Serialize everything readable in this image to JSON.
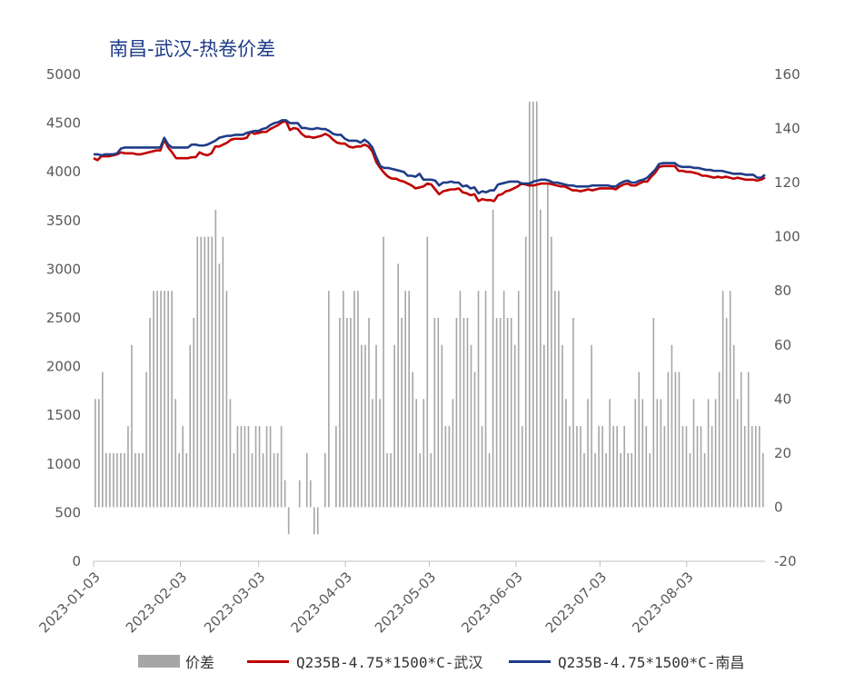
{
  "title": "南昌-武汉-热卷价差",
  "colors": {
    "spread": "#a6a6a6",
    "wuhan": "#c00000",
    "nanchang": "#1f3c88",
    "axis": "#bfbfbf",
    "text": "#595959"
  },
  "chart_data": {
    "type": "bar+line",
    "title": "南昌-武汉-热卷价差",
    "x_ticks": [
      "2023-01-03",
      "2023-02-03",
      "2023-03-03",
      "2023-04-03",
      "2023-05-03",
      "2023-06-03",
      "2023-07-03",
      "2023-08-03"
    ],
    "y_left": {
      "min": 0,
      "max": 5000,
      "step": 500,
      "ticks": [
        "0",
        "500",
        "1000",
        "1500",
        "2000",
        "2500",
        "3000",
        "3500",
        "4000",
        "4500",
        "5000"
      ]
    },
    "y_right": {
      "min": -20,
      "max": 160,
      "step": 20,
      "ticks": [
        "-20",
        "0",
        "20",
        "40",
        "60",
        "80",
        "100",
        "120",
        "140",
        "160"
      ]
    },
    "date_start": "2023-01-03",
    "date_end": "2023-08-31",
    "series": [
      {
        "name": "价差",
        "axis": "right",
        "kind": "bar",
        "values": [
          40,
          40,
          50,
          20,
          20,
          20,
          20,
          20,
          20,
          30,
          60,
          20,
          20,
          20,
          50,
          70,
          80,
          80,
          80,
          80,
          80,
          80,
          40,
          20,
          30,
          20,
          60,
          70,
          100,
          100,
          100,
          100,
          100,
          110,
          90,
          100,
          80,
          40,
          20,
          30,
          30,
          30,
          30,
          20,
          30,
          30,
          20,
          30,
          30,
          20,
          20,
          30,
          10,
          -10,
          0,
          0,
          10,
          0,
          20,
          10,
          -10,
          -10,
          0,
          20,
          80,
          0,
          30,
          70,
          80,
          70,
          70,
          80,
          80,
          60,
          60,
          70,
          40,
          60,
          40,
          100,
          20,
          20,
          60,
          90,
          70,
          80,
          80,
          50,
          40,
          20,
          40,
          100,
          20,
          70,
          70,
          60,
          30,
          30,
          40,
          70,
          80,
          70,
          70,
          60,
          50,
          80,
          30,
          80,
          20,
          110,
          70,
          70,
          80,
          70,
          70,
          60,
          80,
          30,
          100,
          150,
          150,
          150,
          110,
          60,
          120,
          100,
          80,
          80,
          60,
          40,
          30,
          70,
          30,
          30,
          20,
          40,
          60,
          20,
          30,
          30,
          20,
          40,
          30,
          30,
          20,
          30,
          20,
          20,
          40,
          50,
          40,
          30,
          20,
          70,
          40,
          40,
          30,
          50,
          60,
          50,
          50,
          30,
          30,
          20,
          40,
          30,
          30,
          20,
          40,
          30,
          40,
          50,
          80,
          70,
          80,
          60,
          40,
          50,
          30,
          50,
          30,
          30,
          30,
          20
        ]
      },
      {
        "name": "Q235B-4.75*1500*C-武汉",
        "axis": "left",
        "kind": "line",
        "values": [
          4140,
          4120,
          4160,
          4160,
          4160,
          4170,
          4180,
          4200,
          4190,
          4190,
          4190,
          4180,
          4180,
          4190,
          4200,
          4210,
          4220,
          4220,
          4330,
          4250,
          4200,
          4140,
          4140,
          4140,
          4140,
          4150,
          4150,
          4200,
          4180,
          4170,
          4190,
          4260,
          4260,
          4280,
          4300,
          4330,
          4340,
          4340,
          4340,
          4350,
          4410,
          4390,
          4400,
          4410,
          4410,
          4440,
          4460,
          4480,
          4510,
          4520,
          4430,
          4450,
          4440,
          4390,
          4360,
          4360,
          4350,
          4360,
          4370,
          4390,
          4370,
          4330,
          4300,
          4290,
          4290,
          4260,
          4250,
          4260,
          4260,
          4280,
          4260,
          4210,
          4100,
          4040,
          3990,
          3950,
          3930,
          3930,
          3910,
          3900,
          3880,
          3860,
          3830,
          3840,
          3850,
          3880,
          3870,
          3820,
          3770,
          3800,
          3810,
          3820,
          3820,
          3830,
          3790,
          3780,
          3760,
          3770,
          3700,
          3720,
          3710,
          3710,
          3700,
          3760,
          3770,
          3800,
          3810,
          3830,
          3850,
          3880,
          3870,
          3860,
          3860,
          3870,
          3880,
          3880,
          3880,
          3870,
          3860,
          3850,
          3850,
          3830,
          3810,
          3810,
          3800,
          3810,
          3820,
          3810,
          3820,
          3830,
          3830,
          3830,
          3830,
          3820,
          3850,
          3870,
          3880,
          3860,
          3860,
          3880,
          3900,
          3900,
          3950,
          3990,
          4050,
          4060,
          4060,
          4060,
          4060,
          4010,
          4010,
          4000,
          4000,
          3990,
          3980,
          3960,
          3960,
          3950,
          3940,
          3950,
          3940,
          3950,
          3940,
          3930,
          3940,
          3930,
          3920,
          3920,
          3920,
          3910,
          3920,
          3940
        ]
      },
      {
        "name": "Q235B-4.75*1500*C-南昌",
        "axis": "left",
        "kind": "line",
        "values": [
          4180,
          4180,
          4170,
          4180,
          4180,
          4180,
          4190,
          4240,
          4250,
          4250,
          4250,
          4250,
          4250,
          4250,
          4250,
          4250,
          4250,
          4250,
          4350,
          4280,
          4250,
          4250,
          4250,
          4250,
          4250,
          4280,
          4280,
          4270,
          4270,
          4280,
          4300,
          4320,
          4350,
          4360,
          4370,
          4370,
          4380,
          4380,
          4380,
          4400,
          4410,
          4420,
          4420,
          4440,
          4450,
          4480,
          4500,
          4510,
          4530,
          4530,
          4500,
          4500,
          4500,
          4450,
          4450,
          4440,
          4440,
          4450,
          4440,
          4440,
          4420,
          4390,
          4380,
          4380,
          4340,
          4320,
          4320,
          4320,
          4300,
          4330,
          4300,
          4250,
          4150,
          4060,
          4040,
          4040,
          4030,
          4020,
          4010,
          4000,
          3960,
          3960,
          3950,
          3980,
          3920,
          3920,
          3920,
          3910,
          3860,
          3890,
          3890,
          3900,
          3890,
          3890,
          3850,
          3860,
          3830,
          3840,
          3780,
          3800,
          3790,
          3810,
          3810,
          3870,
          3880,
          3890,
          3900,
          3900,
          3900,
          3880,
          3880,
          3880,
          3900,
          3910,
          3920,
          3920,
          3910,
          3890,
          3890,
          3880,
          3870,
          3860,
          3860,
          3850,
          3850,
          3850,
          3850,
          3860,
          3860,
          3860,
          3860,
          3860,
          3850,
          3850,
          3880,
          3900,
          3910,
          3890,
          3890,
          3910,
          3920,
          3940,
          3980,
          4020,
          4080,
          4090,
          4090,
          4090,
          4090,
          4060,
          4050,
          4050,
          4050,
          4040,
          4040,
          4030,
          4020,
          4020,
          4010,
          4010,
          4010,
          4000,
          3990,
          3980,
          3980,
          3980,
          3970,
          3970,
          3970,
          3940,
          3940,
          3970
        ]
      }
    ],
    "legend_position": "bottom",
    "grid": false
  }
}
